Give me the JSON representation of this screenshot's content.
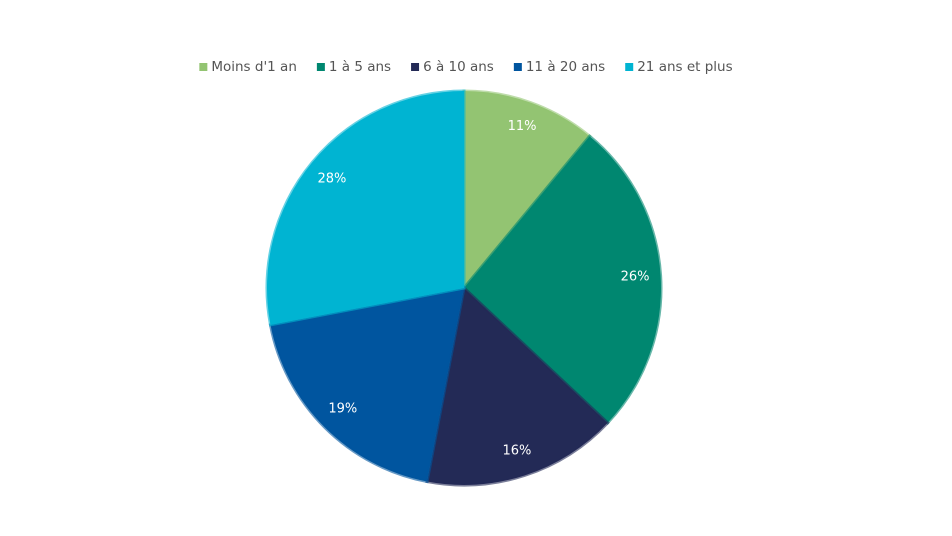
{
  "chart_data": {
    "type": "pie",
    "categories": [
      "Moins d'1 an",
      "1 à 5 ans",
      "6 à 10 ans",
      "11 à 20 ans",
      "21 ans et plus"
    ],
    "values": [
      11,
      26,
      16,
      19,
      28
    ],
    "value_labels": [
      "11%",
      "26%",
      "16%",
      "19%",
      "28%"
    ],
    "colors": [
      "#93c472",
      "#008770",
      "#232a56",
      "#00559f",
      "#00b4d2"
    ],
    "legend": "top"
  }
}
